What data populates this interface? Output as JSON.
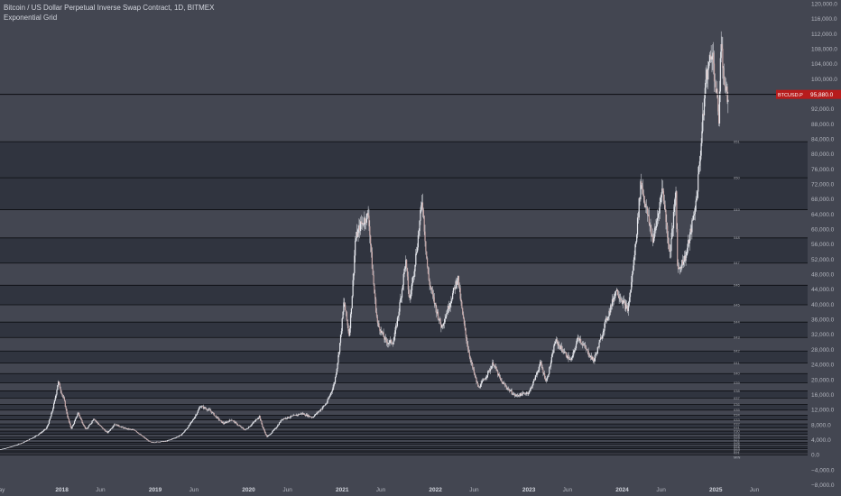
{
  "header": {
    "title": "Bitcoin / US Dollar Perpetual Inverse Swap Contract, 1D, BITMEX",
    "subtitle": "Exponential Grid"
  },
  "price_badge": {
    "label": "BTCUSD.P",
    "value": "95,880.0",
    "color": "#b71c1c"
  },
  "colors": {
    "background": "#434651",
    "band_dark": "#30343f",
    "band_light": "#434651",
    "line": "#0b0c10",
    "candle": "#e6e8ee"
  },
  "chart_data": {
    "type": "candlestick",
    "title": "Bitcoin / US Dollar Perpetual Inverse Swap Contract, 1D, BITMEX",
    "xlabel": "",
    "ylabel": "",
    "ylim": [
      -10000,
      122000
    ],
    "y_ticks": [
      "120,000.0",
      "116,000.0",
      "112,000.0",
      "108,000.0",
      "104,000.0",
      "100,000.0",
      "96,000.0",
      "92,000.0",
      "88,000.0",
      "84,000.0",
      "80,000.0",
      "76,000.0",
      "72,000.0",
      "68,000.0",
      "64,000.0",
      "60,000.0",
      "56,000.0",
      "52,000.0",
      "48,000.0",
      "44,000.0",
      "40,000.0",
      "36,000.0",
      "32,000.0",
      "28,000.0",
      "24,000.0",
      "20,000.0",
      "16,000.0",
      "12,000.0",
      "8,000.0",
      "4,000.0",
      "0.0",
      "−4,000.0",
      "−8,000.0"
    ],
    "y_tick_values": [
      120000,
      116000,
      112000,
      108000,
      104000,
      100000,
      96000,
      92000,
      88000,
      84000,
      80000,
      76000,
      72000,
      68000,
      64000,
      60000,
      56000,
      52000,
      48000,
      44000,
      40000,
      36000,
      32000,
      28000,
      24000,
      20000,
      16000,
      12000,
      8000,
      4000,
      0,
      -4000,
      -8000
    ],
    "x_ticks": [
      {
        "label": "May",
        "date": "2017-05-01",
        "bold": false
      },
      {
        "label": "2018",
        "date": "2018-01-01",
        "bold": true
      },
      {
        "label": "Jun",
        "date": "2018-06-01",
        "bold": false
      },
      {
        "label": "2019",
        "date": "2019-01-01",
        "bold": true
      },
      {
        "label": "Jun",
        "date": "2019-06-01",
        "bold": false
      },
      {
        "label": "2020",
        "date": "2020-01-01",
        "bold": true
      },
      {
        "label": "Jun",
        "date": "2020-06-01",
        "bold": false
      },
      {
        "label": "2021",
        "date": "2021-01-01",
        "bold": true
      },
      {
        "label": "Jun",
        "date": "2021-06-01",
        "bold": false
      },
      {
        "label": "2022",
        "date": "2022-01-01",
        "bold": true
      },
      {
        "label": "Jun",
        "date": "2022-06-01",
        "bold": false
      },
      {
        "label": "2023",
        "date": "2023-01-01",
        "bold": true
      },
      {
        "label": "Jun",
        "date": "2023-06-01",
        "bold": false
      },
      {
        "label": "2024",
        "date": "2024-01-01",
        "bold": true
      },
      {
        "label": "Jun",
        "date": "2024-06-01",
        "bold": false
      },
      {
        "label": "2025",
        "date": "2025-01-01",
        "bold": true
      },
      {
        "label": "Jun",
        "date": "2025-06-01",
        "bold": false
      }
    ],
    "xlim": [
      "2017-04-01",
      "2025-10-01"
    ],
    "current_price": 95880,
    "grid_levels": [
      {
        "label": "MIN",
        "value": 0
      },
      {
        "label": "021",
        "value": 550
      },
      {
        "label": "022",
        "value": 1050
      },
      {
        "label": "023",
        "value": 1600
      },
      {
        "label": "024",
        "value": 2150
      },
      {
        "label": "025",
        "value": 2750
      },
      {
        "label": "026",
        "value": 3350
      },
      {
        "label": "027",
        "value": 4000
      },
      {
        "label": "028",
        "value": 4700
      },
      {
        "label": "029",
        "value": 5450
      },
      {
        "label": "030",
        "value": 6300
      },
      {
        "label": "031",
        "value": 7200
      },
      {
        "label": "032",
        "value": 8200
      },
      {
        "label": "033",
        "value": 9300
      },
      {
        "label": "034",
        "value": 10550
      },
      {
        "label": "035",
        "value": 11900
      },
      {
        "label": "036",
        "value": 13400
      },
      {
        "label": "037",
        "value": 15100
      },
      {
        "label": "038",
        "value": 17000
      },
      {
        "label": "039",
        "value": 19150
      },
      {
        "label": "040",
        "value": 21600
      },
      {
        "label": "041",
        "value": 24400
      },
      {
        "label": "042",
        "value": 27600
      },
      {
        "label": "043",
        "value": 31200
      },
      {
        "label": "044",
        "value": 35300
      },
      {
        "label": "045",
        "value": 39900
      },
      {
        "label": "046",
        "value": 45100
      },
      {
        "label": "047",
        "value": 51000
      },
      {
        "label": "048",
        "value": 57700
      },
      {
        "label": "049",
        "value": 65200
      },
      {
        "label": "050",
        "value": 73700
      },
      {
        "label": "051",
        "value": 83300
      }
    ],
    "series": [
      {
        "points": [
          [
            "2017-05-01",
            1400
          ],
          [
            "2017-07-01",
            2500
          ],
          [
            "2017-09-01",
            4300
          ],
          [
            "2017-11-01",
            7000
          ],
          [
            "2017-12-17",
            19500
          ],
          [
            "2018-01-10",
            14500
          ],
          [
            "2018-02-06",
            7000
          ],
          [
            "2018-03-05",
            11300
          ],
          [
            "2018-04-06",
            6700
          ],
          [
            "2018-05-05",
            9700
          ],
          [
            "2018-06-28",
            5900
          ],
          [
            "2018-07-25",
            8200
          ],
          [
            "2018-09-05",
            7000
          ],
          [
            "2018-10-15",
            6500
          ],
          [
            "2018-11-20",
            4500
          ],
          [
            "2018-12-15",
            3300
          ],
          [
            "2019-02-10",
            3600
          ],
          [
            "2019-04-10",
            5200
          ],
          [
            "2019-05-15",
            8000
          ],
          [
            "2019-06-26",
            13000
          ],
          [
            "2019-08-05",
            11700
          ],
          [
            "2019-09-25",
            8300
          ],
          [
            "2019-10-26",
            9400
          ],
          [
            "2019-12-18",
            6600
          ],
          [
            "2020-02-12",
            10300
          ],
          [
            "2020-03-13",
            4800
          ],
          [
            "2020-05-10",
            9500
          ],
          [
            "2020-07-27",
            11000
          ],
          [
            "2020-09-06",
            10000
          ],
          [
            "2020-11-01",
            13800
          ],
          [
            "2020-12-01",
            19000
          ],
          [
            "2021-01-08",
            41000
          ],
          [
            "2021-01-28",
            32000
          ],
          [
            "2021-02-21",
            57000
          ],
          [
            "2021-03-13",
            61000
          ],
          [
            "2021-04-14",
            64000
          ],
          [
            "2021-05-19",
            35000
          ],
          [
            "2021-06-22",
            30000
          ],
          [
            "2021-07-20",
            30000
          ],
          [
            "2021-09-06",
            52000
          ],
          [
            "2021-09-21",
            41000
          ],
          [
            "2021-11-10",
            68500
          ],
          [
            "2021-12-04",
            47000
          ],
          [
            "2022-01-24",
            34000
          ],
          [
            "2022-03-29",
            47500
          ],
          [
            "2022-05-12",
            27000
          ],
          [
            "2022-06-18",
            17800
          ],
          [
            "2022-08-15",
            24500
          ],
          [
            "2022-09-15",
            19500
          ],
          [
            "2022-11-09",
            15700
          ],
          [
            "2023-01-01",
            16600
          ],
          [
            "2023-02-15",
            24500
          ],
          [
            "2023-03-10",
            19600
          ],
          [
            "2023-04-14",
            30500
          ],
          [
            "2023-06-15",
            25000
          ],
          [
            "2023-07-13",
            31500
          ],
          [
            "2023-09-11",
            25000
          ],
          [
            "2023-10-24",
            34500
          ],
          [
            "2023-12-08",
            44000
          ],
          [
            "2024-01-23",
            38500
          ],
          [
            "2024-03-14",
            73000
          ],
          [
            "2024-05-01",
            57000
          ],
          [
            "2024-06-07",
            71500
          ],
          [
            "2024-07-05",
            53500
          ],
          [
            "2024-07-29",
            70000
          ],
          [
            "2024-08-05",
            49000
          ],
          [
            "2024-09-06",
            53000
          ],
          [
            "2024-10-15",
            67000
          ],
          [
            "2024-11-22",
            99500
          ],
          [
            "2024-12-17",
            108000
          ],
          [
            "2025-01-13",
            89500
          ],
          [
            "2025-01-20",
            109000
          ],
          [
            "2025-02-10",
            96000
          ],
          [
            "2025-02-20",
            95880
          ]
        ]
      }
    ]
  }
}
